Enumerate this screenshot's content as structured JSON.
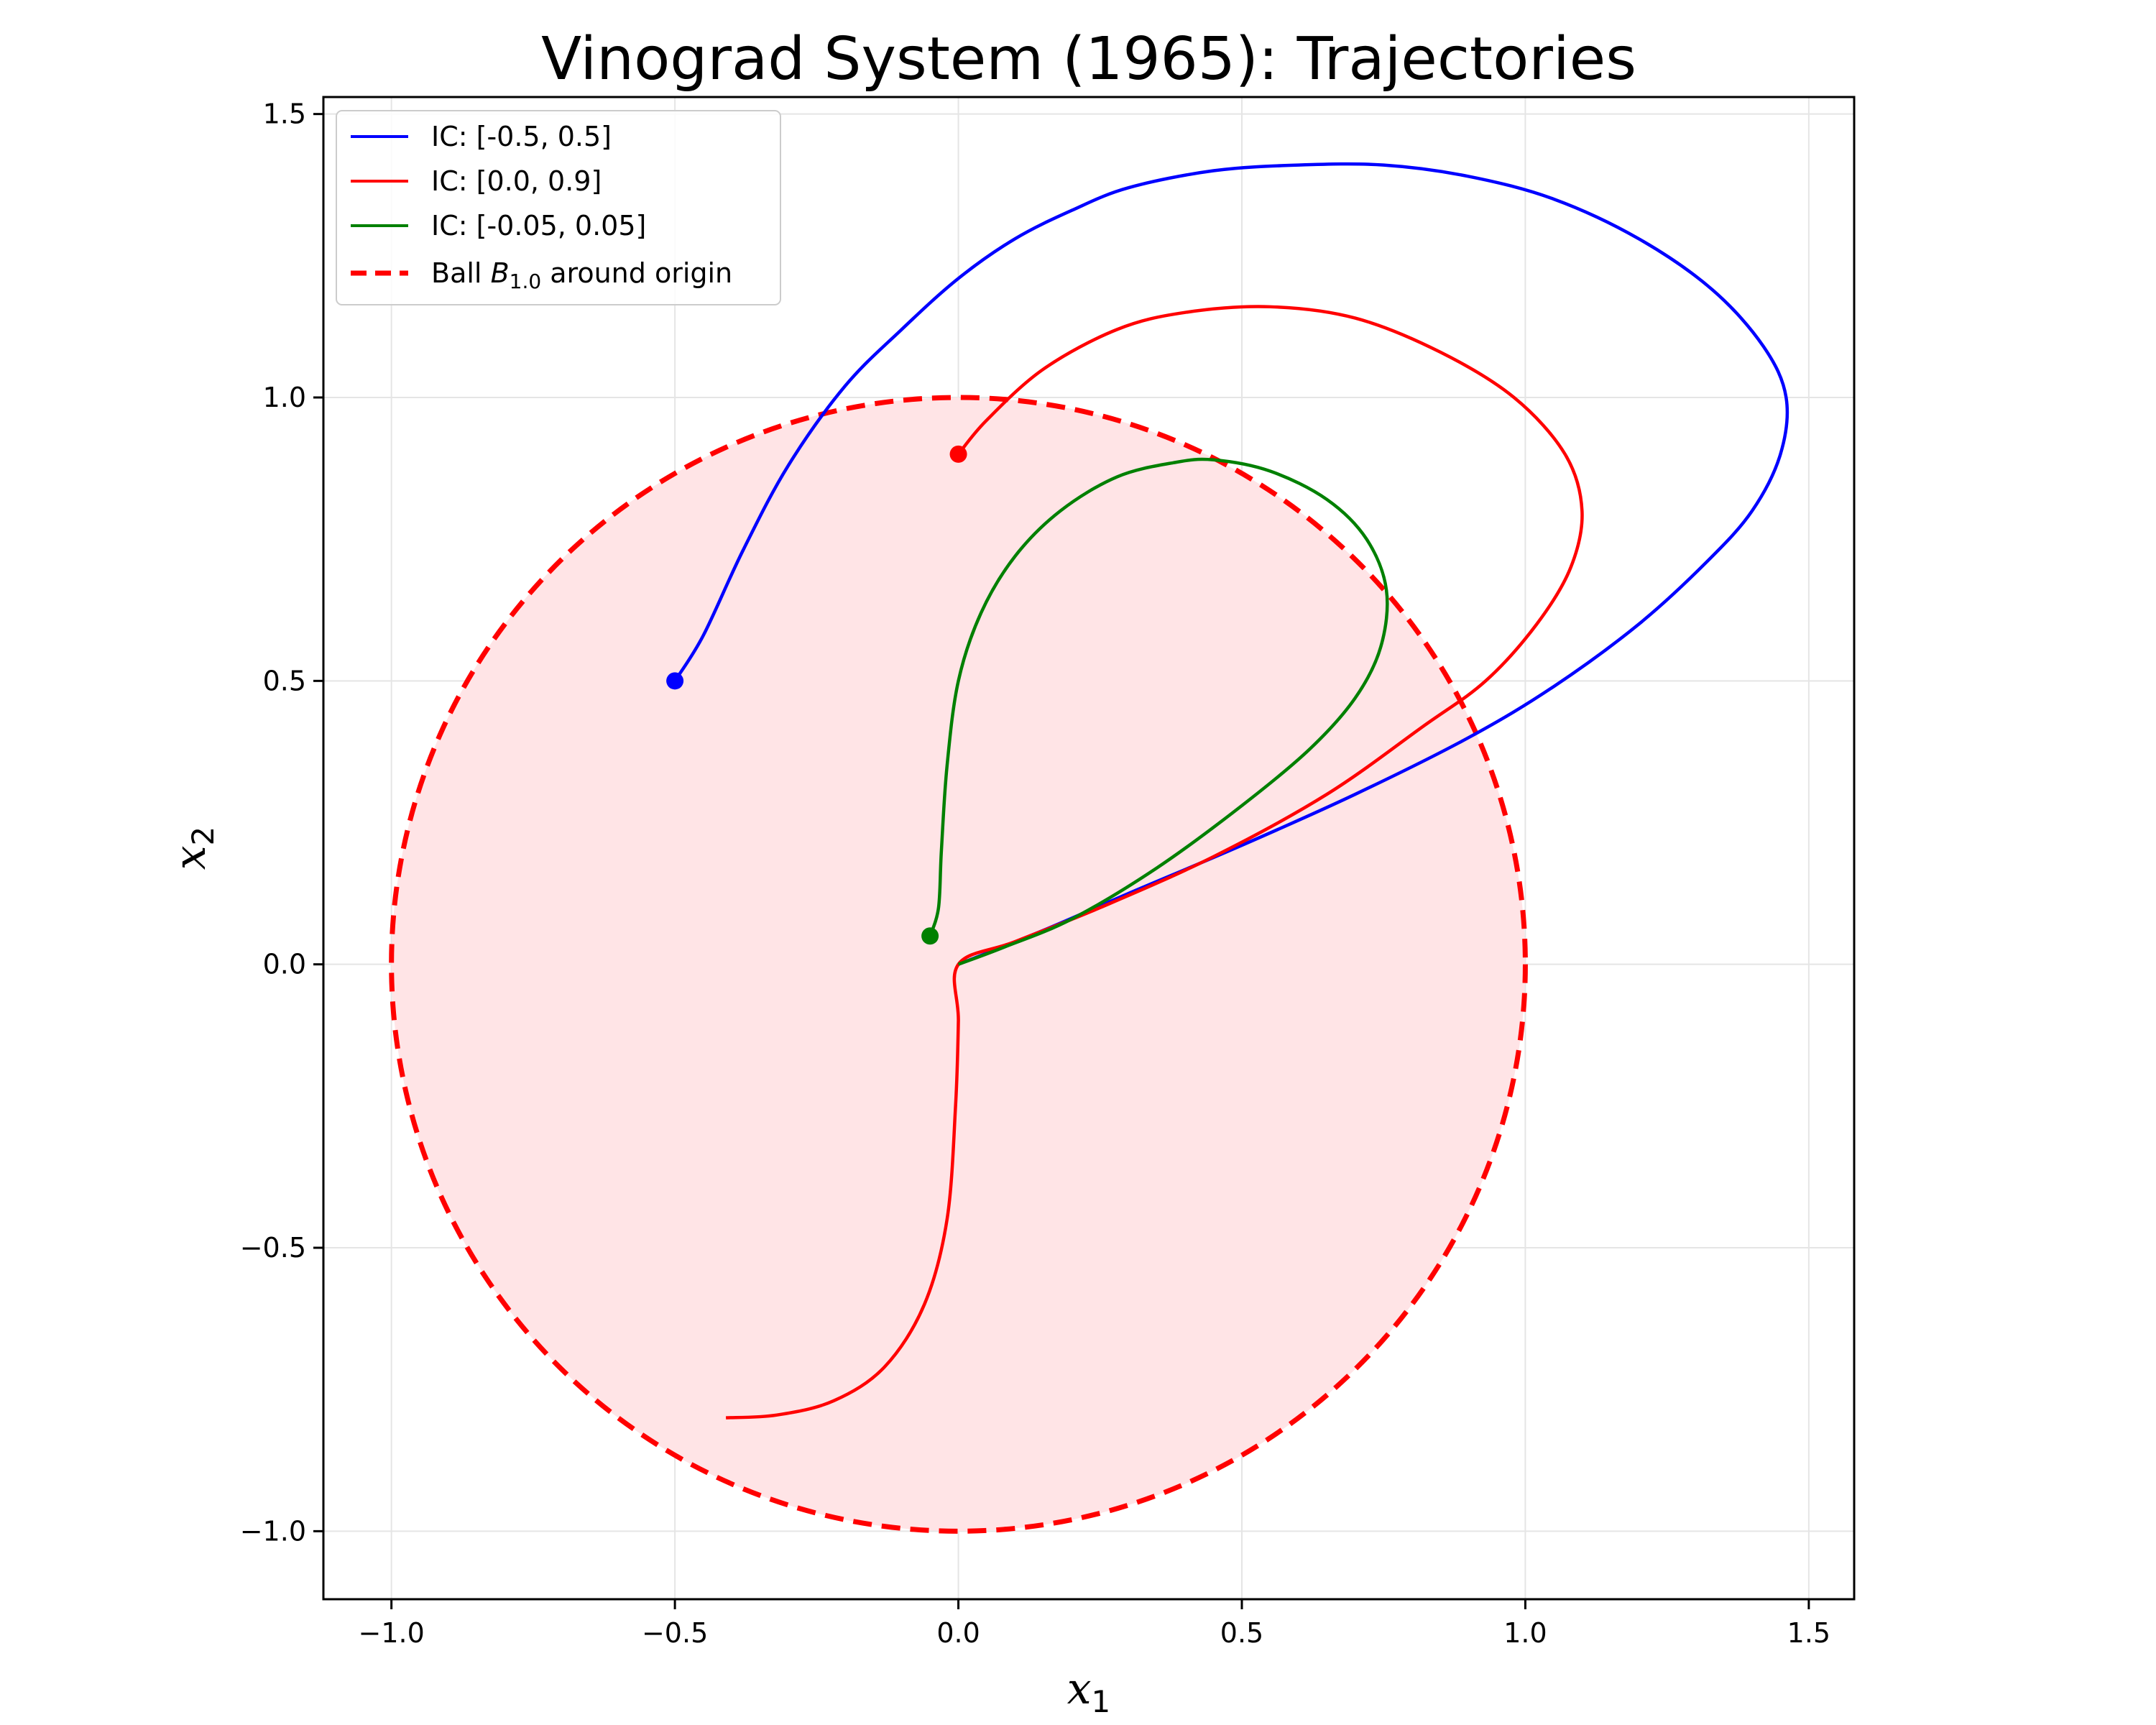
{
  "chart_data": {
    "type": "line",
    "title": "Vinograd System (1965): Trajectories",
    "xlabel": "x",
    "xlabel_sub": "1",
    "ylabel": "x",
    "ylabel_sub": "2",
    "xlim": [
      -1.12,
      1.58
    ],
    "ylim": [
      -1.12,
      1.53
    ],
    "xticks": [
      -1.0,
      -0.5,
      0.0,
      0.5,
      1.0,
      1.5
    ],
    "yticks": [
      -1.0,
      -0.5,
      0.0,
      0.5,
      1.0,
      1.5
    ],
    "xtick_labels": [
      "−1.0",
      "−0.5",
      "0.0",
      "0.5",
      "1.0",
      "1.5"
    ],
    "ytick_labels": [
      "−1.0",
      "−0.5",
      "0.0",
      "0.5",
      "1.0",
      "1.5"
    ],
    "grid": true,
    "legend_position": "top-left",
    "ball": {
      "label_prefix": "Ball ",
      "label_symbol": "B",
      "label_sub": "1.0",
      "label_suffix": " around origin",
      "radius": 1.0,
      "center": [
        0,
        0
      ],
      "line_color": "#ff0000",
      "fill_color": "#ffe4e6"
    },
    "series": [
      {
        "name": "IC: [-0.5, 0.5]",
        "color": "#0000ff",
        "start": [
          -0.5,
          0.5
        ],
        "points": [
          [
            -0.5,
            0.5
          ],
          [
            -0.45,
            0.58
          ],
          [
            -0.38,
            0.73
          ],
          [
            -0.3,
            0.88
          ],
          [
            -0.2,
            1.02
          ],
          [
            -0.1,
            1.12
          ],
          [
            0.0,
            1.21
          ],
          [
            0.1,
            1.28
          ],
          [
            0.2,
            1.33
          ],
          [
            0.3,
            1.37
          ],
          [
            0.45,
            1.4
          ],
          [
            0.6,
            1.41
          ],
          [
            0.75,
            1.41
          ],
          [
            0.9,
            1.39
          ],
          [
            1.05,
            1.35
          ],
          [
            1.2,
            1.28
          ],
          [
            1.33,
            1.19
          ],
          [
            1.42,
            1.09
          ],
          [
            1.46,
            1.0
          ],
          [
            1.45,
            0.9
          ],
          [
            1.4,
            0.8
          ],
          [
            1.32,
            0.71
          ],
          [
            1.2,
            0.6
          ],
          [
            1.05,
            0.49
          ],
          [
            0.9,
            0.4
          ],
          [
            0.7,
            0.3
          ],
          [
            0.5,
            0.21
          ],
          [
            0.3,
            0.125
          ],
          [
            0.15,
            0.06
          ],
          [
            0.0,
            0.0
          ]
        ]
      },
      {
        "name": "IC: [0.0, 0.9]",
        "color": "#ff0000",
        "start": [
          0.0,
          0.9
        ],
        "points": [
          [
            0.0,
            0.9
          ],
          [
            0.05,
            0.96
          ],
          [
            0.15,
            1.05
          ],
          [
            0.28,
            1.12
          ],
          [
            0.4,
            1.15
          ],
          [
            0.55,
            1.16
          ],
          [
            0.7,
            1.14
          ],
          [
            0.85,
            1.08
          ],
          [
            0.98,
            1.0
          ],
          [
            1.07,
            0.9
          ],
          [
            1.1,
            0.8
          ],
          [
            1.08,
            0.7
          ],
          [
            1.02,
            0.6
          ],
          [
            0.93,
            0.5
          ],
          [
            0.82,
            0.42
          ],
          [
            0.65,
            0.3
          ],
          [
            0.45,
            0.19
          ],
          [
            0.25,
            0.1
          ],
          [
            0.1,
            0.04
          ],
          [
            0.0,
            0.0
          ],
          [
            0.0,
            -0.1
          ],
          [
            -0.005,
            -0.25
          ],
          [
            -0.02,
            -0.45
          ],
          [
            -0.06,
            -0.6
          ],
          [
            -0.13,
            -0.71
          ],
          [
            -0.22,
            -0.77
          ],
          [
            -0.32,
            -0.795
          ],
          [
            -0.41,
            -0.8
          ]
        ]
      },
      {
        "name": "IC: [-0.05, 0.05]",
        "color": "#008000",
        "start": [
          -0.05,
          0.05
        ],
        "points": [
          [
            -0.05,
            0.05
          ],
          [
            -0.035,
            0.1
          ],
          [
            -0.03,
            0.2
          ],
          [
            -0.02,
            0.35
          ],
          [
            0.0,
            0.5
          ],
          [
            0.04,
            0.62
          ],
          [
            0.1,
            0.72
          ],
          [
            0.18,
            0.8
          ],
          [
            0.28,
            0.86
          ],
          [
            0.38,
            0.885
          ],
          [
            0.45,
            0.89
          ],
          [
            0.55,
            0.87
          ],
          [
            0.65,
            0.82
          ],
          [
            0.72,
            0.75
          ],
          [
            0.755,
            0.66
          ],
          [
            0.745,
            0.56
          ],
          [
            0.7,
            0.47
          ],
          [
            0.62,
            0.38
          ],
          [
            0.5,
            0.28
          ],
          [
            0.35,
            0.17
          ],
          [
            0.2,
            0.08
          ],
          [
            0.08,
            0.03
          ],
          [
            0.0,
            0.0
          ]
        ]
      }
    ]
  }
}
